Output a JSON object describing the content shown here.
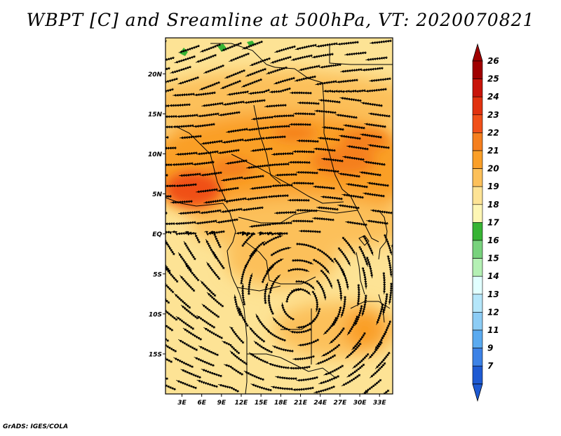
{
  "title": "WBPT [C] and Sreamline at 500hPa, VT: 2020070821",
  "footer": "GrADS: IGES/COLA",
  "map": {
    "lat_labels": [
      {
        "label": "20N",
        "lat": 20
      },
      {
        "label": "15N",
        "lat": 15
      },
      {
        "label": "10N",
        "lat": 10
      },
      {
        "label": "5N",
        "lat": 5
      },
      {
        "label": "EQ",
        "lat": 0
      },
      {
        "label": "5S",
        "lat": -5
      },
      {
        "label": "10S",
        "lat": -10
      },
      {
        "label": "15S",
        "lat": -15
      }
    ],
    "lon_labels": [
      {
        "label": "3E",
        "lon": 3
      },
      {
        "label": "6E",
        "lon": 6
      },
      {
        "label": "9E",
        "lon": 9
      },
      {
        "label": "12E",
        "lon": 12
      },
      {
        "label": "15E",
        "lon": 15
      },
      {
        "label": "18E",
        "lon": 18
      },
      {
        "label": "21E",
        "lon": 21
      },
      {
        "label": "24E",
        "lon": 24
      },
      {
        "label": "27E",
        "lon": 27
      },
      {
        "label": "30E",
        "lon": 30
      },
      {
        "label": "33E",
        "lon": 33
      }
    ],
    "lon_range": [
      0.5,
      35
    ],
    "lat_range": [
      -20,
      24.5
    ]
  },
  "colorbar": {
    "levels": [
      {
        "label": "26",
        "color": "#a00000"
      },
      {
        "label": "25",
        "color": "#c8140a"
      },
      {
        "label": "24",
        "color": "#e1320f"
      },
      {
        "label": "23",
        "color": "#f05019"
      },
      {
        "label": "22",
        "color": "#f57f1e"
      },
      {
        "label": "21",
        "color": "#fa9f28"
      },
      {
        "label": "20",
        "color": "#fcc05a"
      },
      {
        "label": "19",
        "color": "#fde395"
      },
      {
        "label": "18",
        "color": "#fdf6b4"
      },
      {
        "label": "17",
        "color": "#37b434"
      },
      {
        "label": "16",
        "color": "#78d27d"
      },
      {
        "label": "15",
        "color": "#b4f0b4"
      },
      {
        "label": "14",
        "color": "#e1ffff"
      },
      {
        "label": "13",
        "color": "#b4e6fa"
      },
      {
        "label": "12",
        "color": "#8cccf5"
      },
      {
        "label": "11",
        "color": "#5aaaf0"
      },
      {
        "label": "9",
        "color": "#3c82e6"
      },
      {
        "label": "7",
        "color": "#1e5ad2"
      }
    ],
    "top_color": "#a00000",
    "bottom_color": "#1e5ad2"
  },
  "colors": {
    "deep_orange": "#f05019",
    "orange": "#fa9f28",
    "light_orange": "#fcc05a",
    "pale_yellow": "#fde395",
    "green": "#37b434"
  }
}
